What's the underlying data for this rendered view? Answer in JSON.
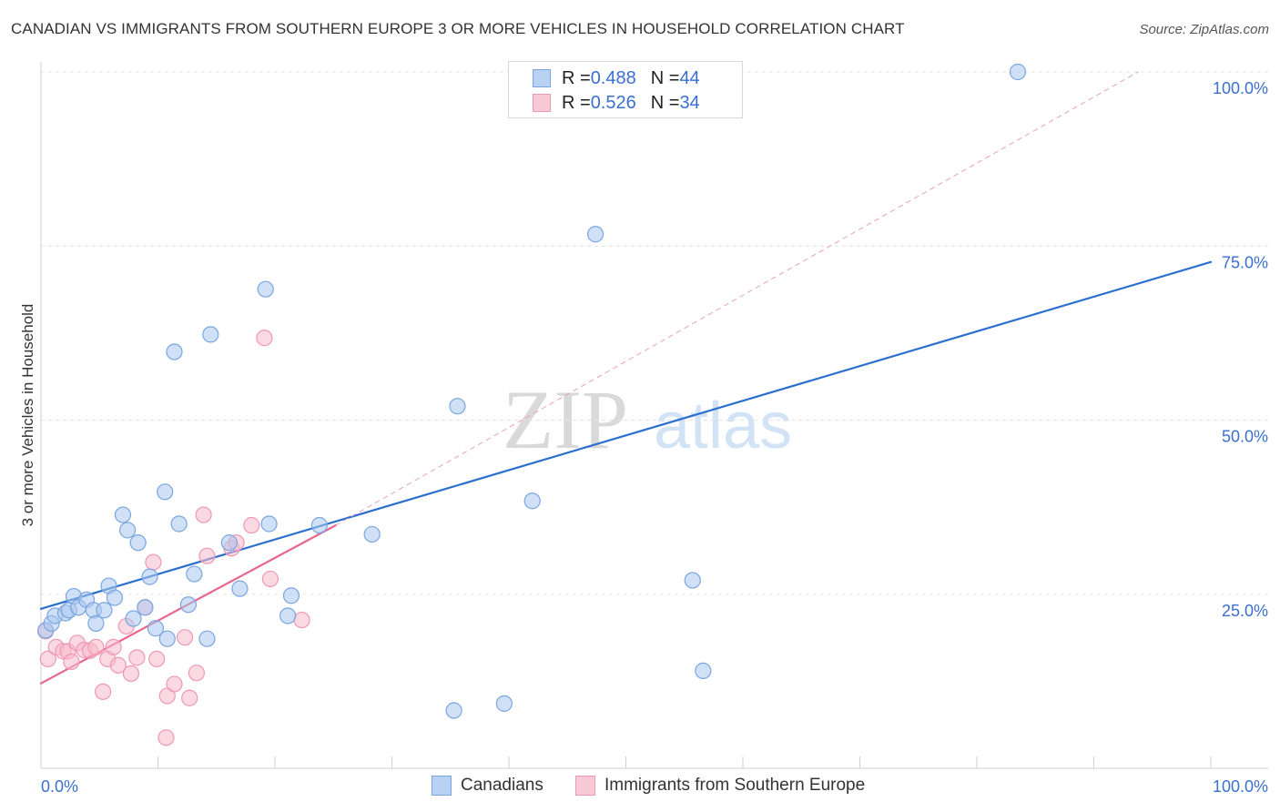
{
  "title": "CANADIAN VS IMMIGRANTS FROM SOUTHERN EUROPE 3 OR MORE VEHICLES IN HOUSEHOLD CORRELATION CHART",
  "source": "Source: ZipAtlas.com",
  "watermark": {
    "zip": "ZIP",
    "atlas": "atlas"
  },
  "legend_top": [
    {
      "r_label": "R = ",
      "r_value": "0.488",
      "n_label": "N = ",
      "n_value": "44"
    },
    {
      "r_label": "R = ",
      "r_value": "0.526",
      "n_label": "N = ",
      "n_value": "34"
    }
  ],
  "legend_bottom": [
    {
      "label": "Canadians"
    },
    {
      "label": "Immigrants from Southern Europe"
    }
  ],
  "colors": {
    "blue_fill": "#a9c6ef",
    "blue_stroke": "#7aa6e0",
    "blue_line": "#2b6fcf",
    "pink_fill": "#f7b9cc",
    "pink_stroke": "#ef98b4",
    "pink_line": "#e8668f",
    "dash": "#e6a3b5",
    "grid": "#e3e3e3",
    "axis_label": "#3a6fd0"
  },
  "chart_data": {
    "type": "scatter",
    "title": "CANADIAN VS IMMIGRANTS FROM SOUTHERN EUROPE 3 OR MORE VEHICLES IN HOUSEHOLD CORRELATION CHART",
    "xlabel": "",
    "ylabel": "3 or more Vehicles in Household",
    "xlim": [
      0,
      100
    ],
    "ylim": [
      0,
      100
    ],
    "x_tick_labels": [
      {
        "value": 0,
        "label": "0.0%"
      },
      {
        "value": 100,
        "label": "100.0%"
      }
    ],
    "y_tick_labels": [
      {
        "value": 25,
        "label": "25.0%"
      },
      {
        "value": 50,
        "label": "50.0%"
      },
      {
        "value": 75,
        "label": "75.0%"
      },
      {
        "value": 100,
        "label": "100.0%"
      }
    ],
    "x_minor_ticks": [
      10,
      20,
      30,
      40,
      50,
      60,
      70,
      80,
      90,
      100
    ],
    "grid": true,
    "series": [
      {
        "name": "Canadians",
        "color": "#a9c6ef",
        "points": [
          [
            0.4,
            19.8
          ],
          [
            0.9,
            20.8
          ],
          [
            1.2,
            21.9
          ],
          [
            2.1,
            22.3
          ],
          [
            2.4,
            22.7
          ],
          [
            2.8,
            24.7
          ],
          [
            3.2,
            23.1
          ],
          [
            3.9,
            24.2
          ],
          [
            4.5,
            22.7
          ],
          [
            4.7,
            20.8
          ],
          [
            5.4,
            22.7
          ],
          [
            5.8,
            26.2
          ],
          [
            6.3,
            24.5
          ],
          [
            7.0,
            36.4
          ],
          [
            7.4,
            34.2
          ],
          [
            7.9,
            21.5
          ],
          [
            8.3,
            32.4
          ],
          [
            8.9,
            23.1
          ],
          [
            9.3,
            27.5
          ],
          [
            9.8,
            20.1
          ],
          [
            10.6,
            39.7
          ],
          [
            10.8,
            18.6
          ],
          [
            11.4,
            59.8
          ],
          [
            11.8,
            35.1
          ],
          [
            12.6,
            23.5
          ],
          [
            13.1,
            27.9
          ],
          [
            14.2,
            18.6
          ],
          [
            14.5,
            62.3
          ],
          [
            16.1,
            32.4
          ],
          [
            17.0,
            25.8
          ],
          [
            19.2,
            68.8
          ],
          [
            19.5,
            35.1
          ],
          [
            21.1,
            21.9
          ],
          [
            21.4,
            24.8
          ],
          [
            23.8,
            34.9
          ],
          [
            28.3,
            33.6
          ],
          [
            35.3,
            8.3
          ],
          [
            35.6,
            52.0
          ],
          [
            39.6,
            9.3
          ],
          [
            42.0,
            38.4
          ],
          [
            47.4,
            76.7
          ],
          [
            55.7,
            27.0
          ],
          [
            56.6,
            14.0
          ],
          [
            83.5,
            100.0
          ]
        ]
      },
      {
        "name": "Immigrants from Southern Europe",
        "color": "#f7b9cc",
        "points": [
          [
            0.4,
            19.7
          ],
          [
            0.6,
            15.7
          ],
          [
            1.3,
            17.4
          ],
          [
            1.9,
            16.8
          ],
          [
            2.3,
            16.8
          ],
          [
            2.6,
            15.3
          ],
          [
            3.1,
            18.0
          ],
          [
            3.7,
            17.0
          ],
          [
            4.2,
            16.9
          ],
          [
            4.7,
            17.4
          ],
          [
            5.3,
            11.0
          ],
          [
            5.7,
            15.7
          ],
          [
            6.2,
            17.4
          ],
          [
            6.6,
            14.8
          ],
          [
            7.3,
            20.4
          ],
          [
            7.7,
            13.6
          ],
          [
            8.2,
            15.9
          ],
          [
            8.9,
            23.1
          ],
          [
            9.6,
            29.6
          ],
          [
            9.9,
            15.7
          ],
          [
            10.7,
            4.4
          ],
          [
            10.8,
            10.4
          ],
          [
            11.4,
            12.1
          ],
          [
            12.3,
            18.8
          ],
          [
            12.7,
            10.1
          ],
          [
            13.3,
            13.7
          ],
          [
            13.9,
            36.4
          ],
          [
            14.2,
            30.5
          ],
          [
            16.3,
            31.6
          ],
          [
            16.7,
            32.4
          ],
          [
            18.0,
            34.9
          ],
          [
            19.1,
            61.8
          ],
          [
            19.6,
            27.2
          ],
          [
            22.3,
            21.3
          ]
        ]
      }
    ],
    "trend_lines": [
      {
        "series": "Canadians",
        "from": [
          0,
          22.9
        ],
        "to": [
          100,
          72.7
        ],
        "style": "solid"
      },
      {
        "series": "Immigrants from Southern Europe",
        "from": [
          0,
          12.2
        ],
        "to": [
          25.2,
          34.9
        ],
        "style": "solid"
      },
      {
        "series": "Immigrants from Southern Europe",
        "from": [
          25.2,
          34.9
        ],
        "to": [
          93.8,
          100.0
        ],
        "style": "dashed"
      }
    ]
  }
}
